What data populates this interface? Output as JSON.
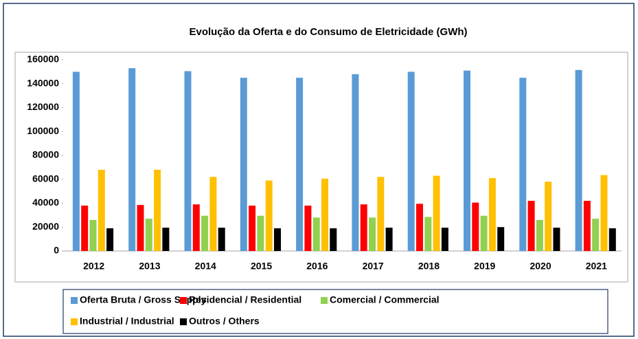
{
  "chart_data": {
    "type": "bar",
    "title": "Evolução da Oferta e do Consumo de Eletricidade (GWh)",
    "categories": [
      "2012",
      "2013",
      "2014",
      "2015",
      "2016",
      "2017",
      "2018",
      "2019",
      "2020",
      "2021"
    ],
    "series": [
      {
        "name": "Oferta Bruta / Gross Supply",
        "color": "#5b9bd5",
        "values": [
          150000,
          153000,
          150500,
          145000,
          145000,
          148000,
          150000,
          151000,
          145000,
          151500
        ]
      },
      {
        "name": "Residencial / Residential",
        "color": "#ff0000",
        "values": [
          38000,
          38500,
          39000,
          38000,
          38000,
          39000,
          39500,
          40500,
          42000,
          42000
        ]
      },
      {
        "name": "Comercial / Commercial",
        "color": "#92d050",
        "values": [
          26000,
          27000,
          29500,
          29500,
          28000,
          28000,
          28500,
          29500,
          26000,
          27000
        ]
      },
      {
        "name": "Industrial / Industrial",
        "color": "#ffc000",
        "values": [
          68000,
          68000,
          62000,
          59000,
          60500,
          62000,
          63000,
          61000,
          58000,
          63500
        ]
      },
      {
        "name": "Outros / Others",
        "color": "#000000",
        "values": [
          19000,
          19500,
          19500,
          19000,
          19000,
          19500,
          19500,
          20000,
          19500,
          19000
        ]
      }
    ],
    "ylim": [
      0,
      160000
    ],
    "yticks": [
      0,
      20000,
      40000,
      60000,
      80000,
      100000,
      120000,
      140000,
      160000
    ],
    "grid": false,
    "legend": "bottom"
  }
}
